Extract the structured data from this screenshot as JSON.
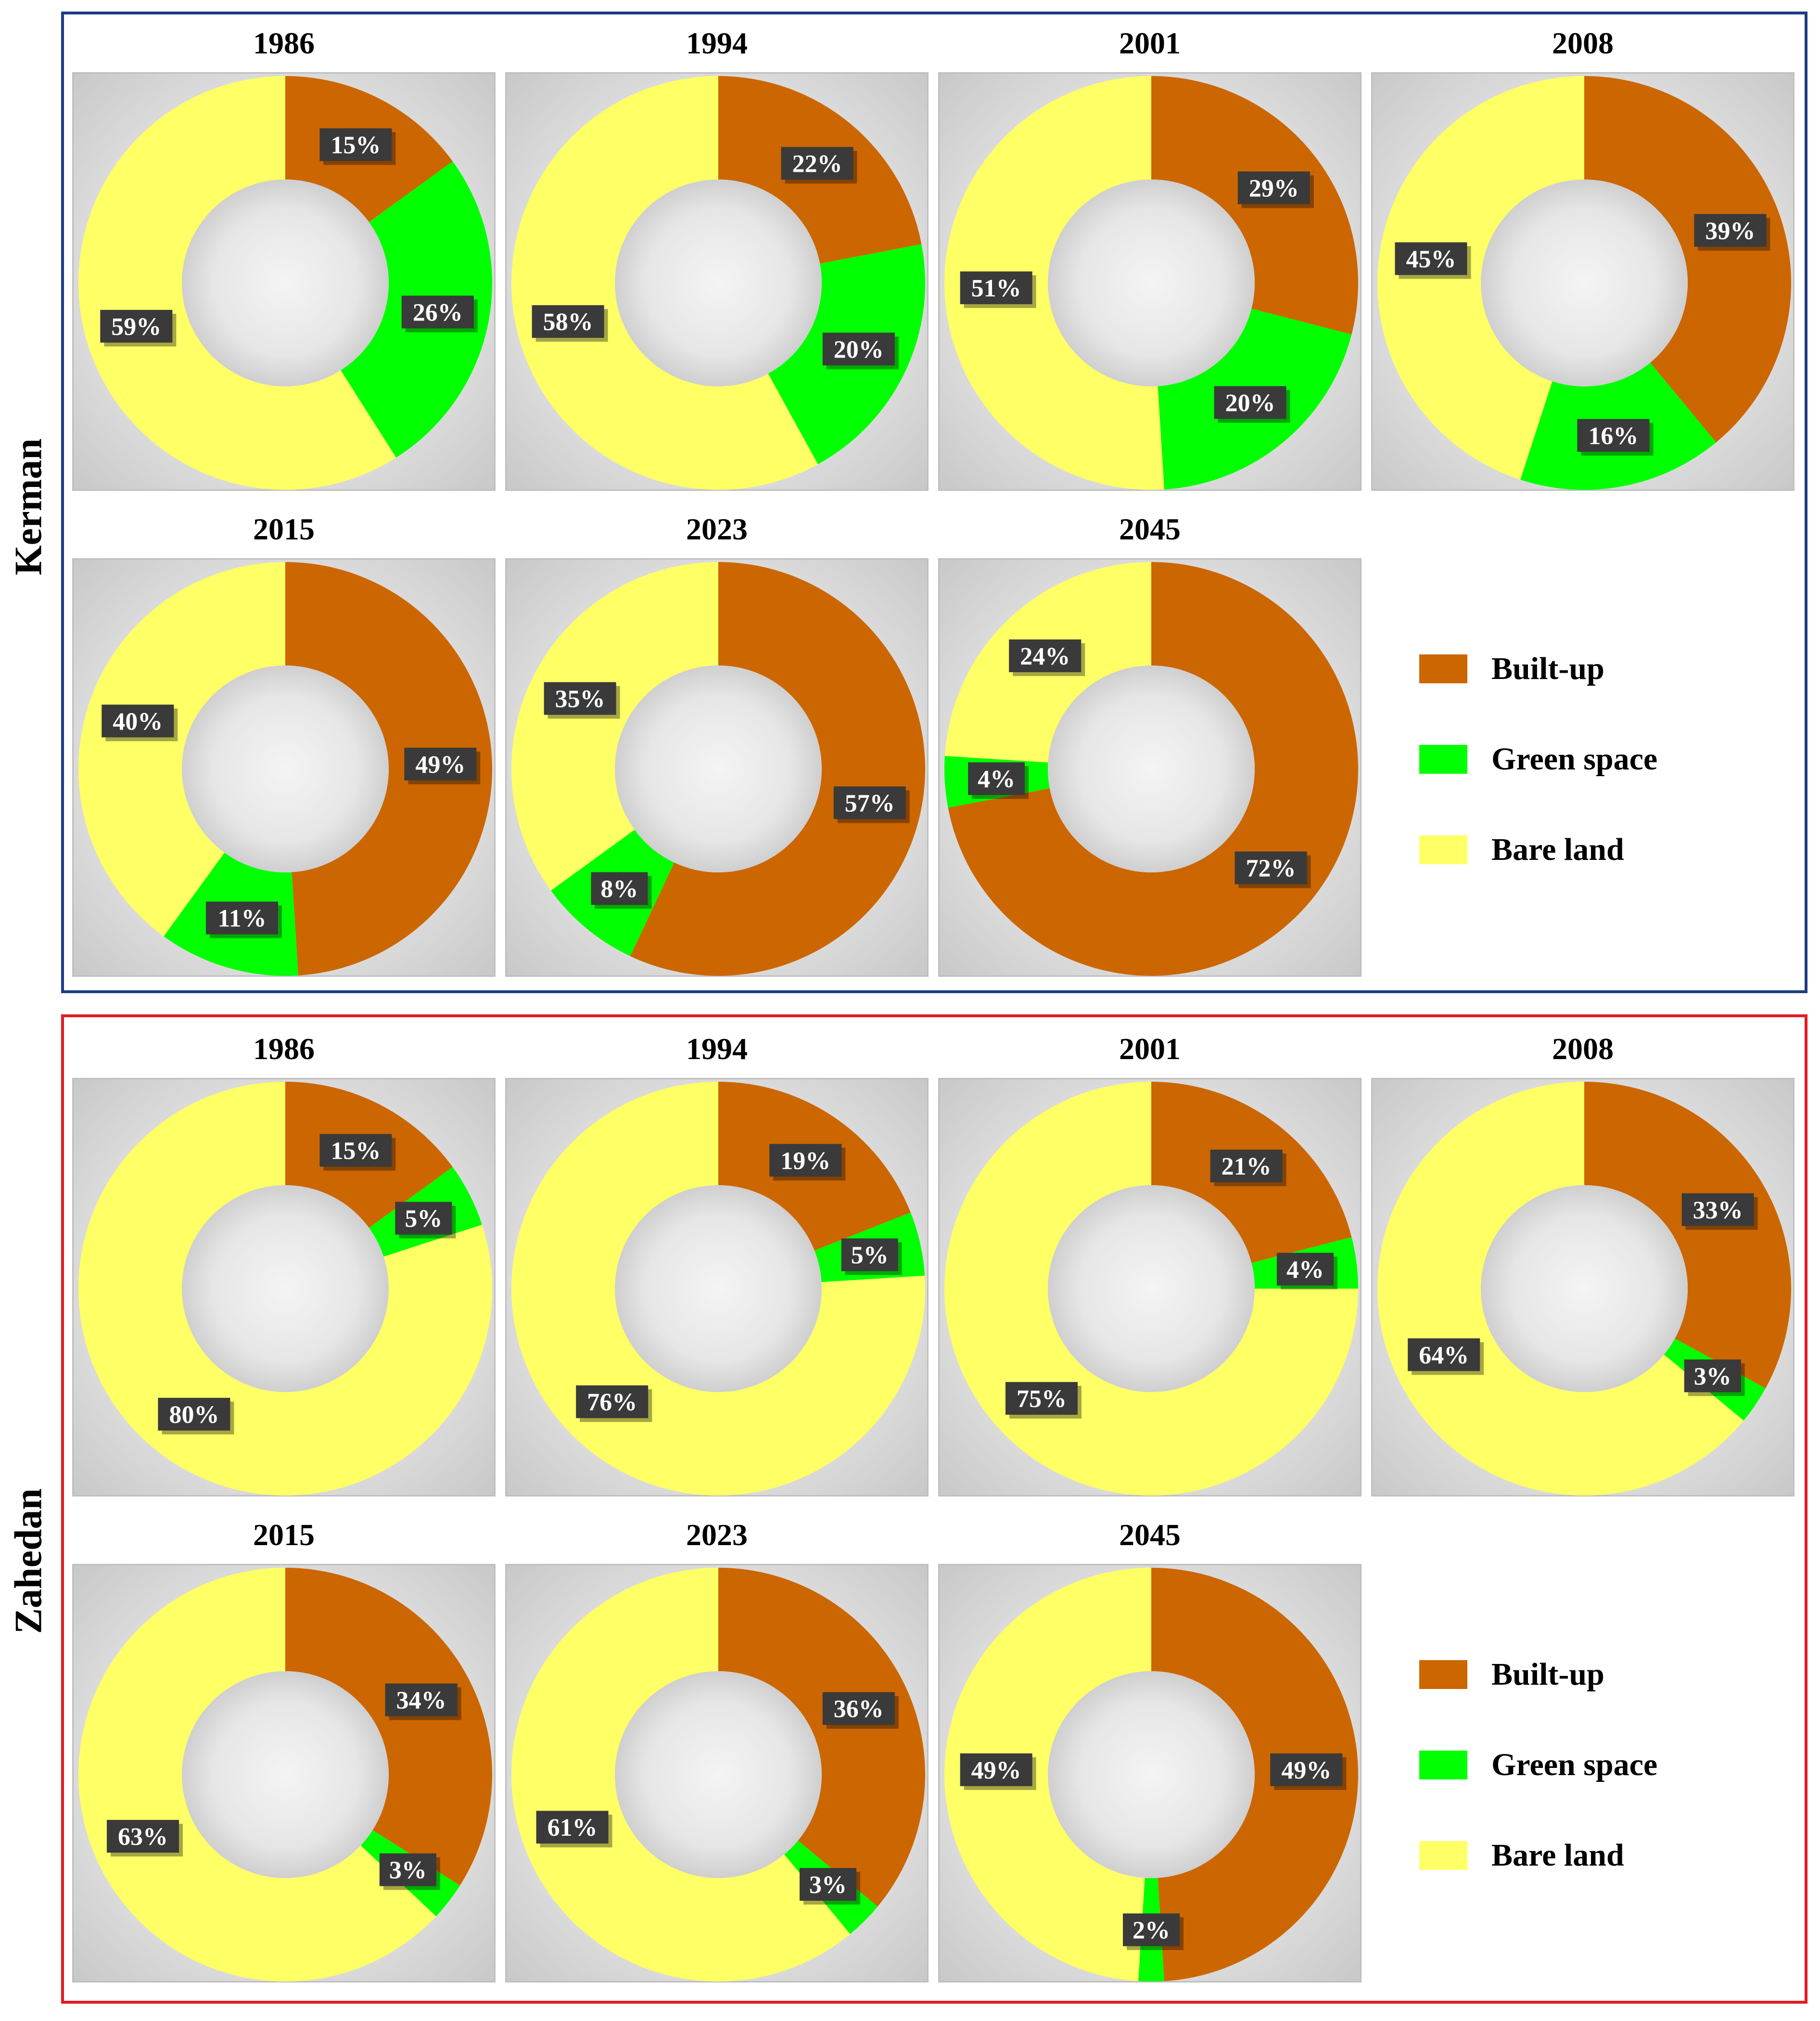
{
  "chart_data": [
    {
      "type": "doughnut",
      "panel": "Kerman",
      "city": "Kerman",
      "legend": [
        {
          "label": "Built-up",
          "color": "#cc6600"
        },
        {
          "label": "Green space",
          "color": "#00ff00"
        },
        {
          "label": "Bare land",
          "color": "#ffff66"
        }
      ],
      "charts": [
        {
          "year": "1986",
          "values": [
            15,
            26,
            59
          ],
          "labels": [
            "15%",
            "26%",
            "59%"
          ]
        },
        {
          "year": "1994",
          "values": [
            22,
            20,
            58
          ],
          "labels": [
            "22%",
            "20%",
            "58%"
          ]
        },
        {
          "year": "2001",
          "values": [
            29,
            20,
            51
          ],
          "labels": [
            "29%",
            "20%",
            "51%"
          ]
        },
        {
          "year": "2008",
          "values": [
            39,
            16,
            45
          ],
          "labels": [
            "39%",
            "16%",
            "45%"
          ]
        },
        {
          "year": "2015",
          "values": [
            49,
            11,
            40
          ],
          "labels": [
            "49%",
            "11%",
            "40%"
          ]
        },
        {
          "year": "2023",
          "values": [
            57,
            8,
            35
          ],
          "labels": [
            "57%",
            "8%",
            "35%"
          ]
        },
        {
          "year": "2045",
          "values": [
            72,
            4,
            24
          ],
          "labels": [
            "72%",
            "4%",
            "24%"
          ]
        }
      ]
    },
    {
      "type": "doughnut",
      "panel": "Zahedan",
      "city": "Zahedan",
      "legend": [
        {
          "label": "Built-up",
          "color": "#cc6600"
        },
        {
          "label": "Green space",
          "color": "#00ff00"
        },
        {
          "label": "Bare land",
          "color": "#ffff66"
        }
      ],
      "charts": [
        {
          "year": "1986",
          "values": [
            15,
            5,
            80
          ],
          "labels": [
            "15%",
            "5%",
            "80%"
          ]
        },
        {
          "year": "1994",
          "values": [
            19,
            5,
            76
          ],
          "labels": [
            "19%",
            "5%",
            "76%"
          ]
        },
        {
          "year": "2001",
          "values": [
            21,
            4,
            75
          ],
          "labels": [
            "21%",
            "4%",
            "75%"
          ]
        },
        {
          "year": "2008",
          "values": [
            33,
            3,
            64
          ],
          "labels": [
            "33%",
            "3%",
            "64%"
          ]
        },
        {
          "year": "2015",
          "values": [
            34,
            3,
            63
          ],
          "labels": [
            "34%",
            "3%",
            "63%"
          ]
        },
        {
          "year": "2023",
          "values": [
            36,
            3,
            61
          ],
          "labels": [
            "36%",
            "3%",
            "61%"
          ]
        },
        {
          "year": "2045",
          "values": [
            49,
            2,
            49
          ],
          "labels": [
            "49%",
            "2%",
            "49%"
          ]
        }
      ]
    }
  ]
}
